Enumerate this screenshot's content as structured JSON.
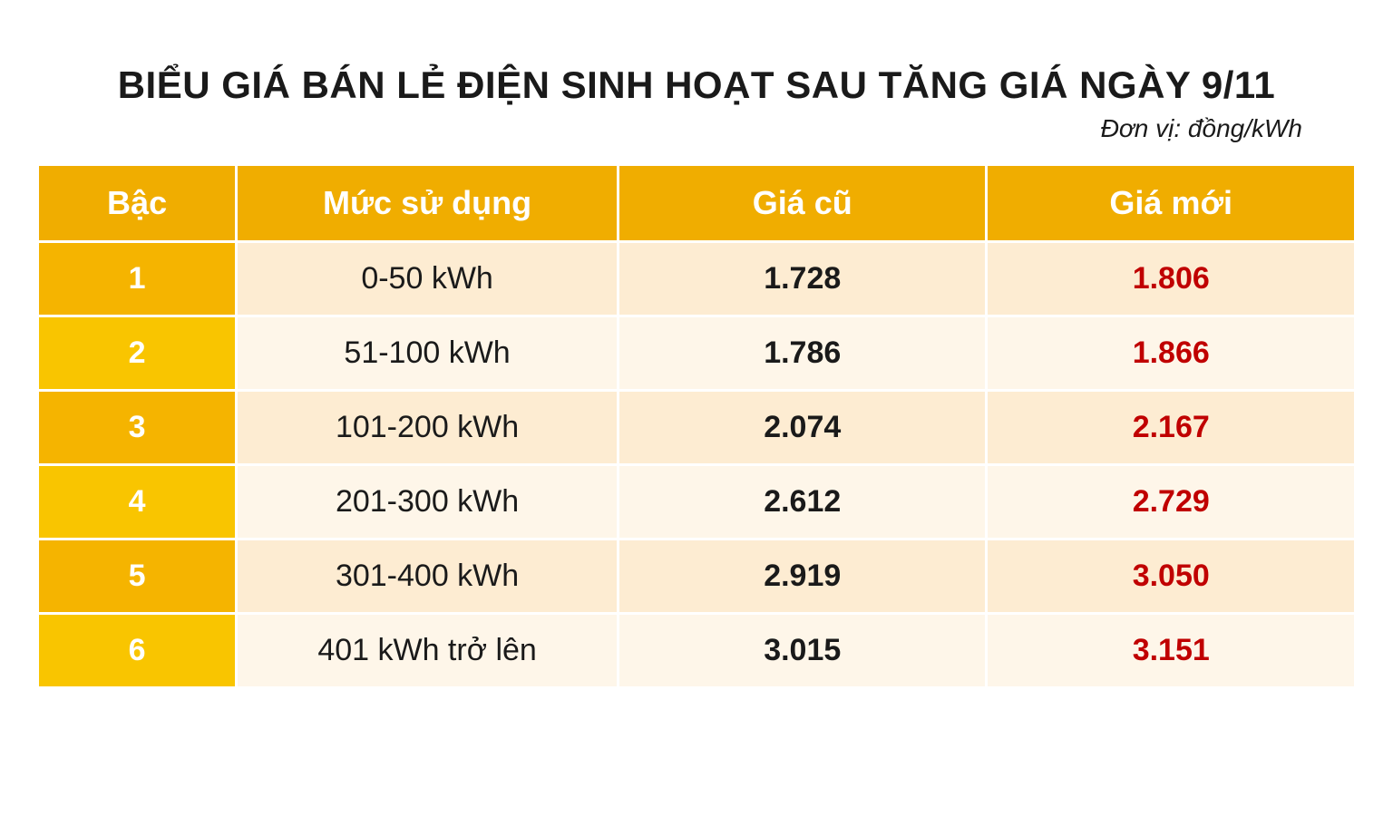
{
  "title": "BIỂU GIÁ BÁN LẺ ĐIỆN SINH HOẠT SAU TĂNG GIÁ NGÀY 9/11",
  "subtitle": "Đơn vị: đồng/kWh",
  "table": {
    "type": "table",
    "columns": [
      "Bậc",
      "Mức sử dụng",
      "Giá cũ",
      "Giá mới"
    ],
    "col_widths_pct": [
      15,
      29,
      28,
      28
    ],
    "header_bg": "#f0ad00",
    "header_color": "#ffffff",
    "header_fontsize": 36,
    "cell_fontsize": 34,
    "tier_bg_odd": "#f5b400",
    "tier_bg_even": "#f9c500",
    "row_bg_odd": "#fdecd2",
    "row_bg_even": "#fef6e9",
    "tier_color": "#ffffff",
    "usage_color": "#1a1a1a",
    "old_color": "#1a1a1a",
    "new_color": "#c00000",
    "rows": [
      {
        "tier": "1",
        "usage": "0-50 kWh",
        "old": "1.728",
        "new": "1.806"
      },
      {
        "tier": "2",
        "usage": "51-100 kWh",
        "old": "1.786",
        "new": "1.866"
      },
      {
        "tier": "3",
        "usage": "101-200 kWh",
        "old": "2.074",
        "new": "2.167"
      },
      {
        "tier": "4",
        "usage": "201-300 kWh",
        "old": "2.612",
        "new": "2.729"
      },
      {
        "tier": "5",
        "usage": "301-400 kWh",
        "old": "2.919",
        "new": "3.050"
      },
      {
        "tier": "6",
        "usage": "401 kWh trở lên",
        "old": "3.015",
        "new": "3.151"
      }
    ]
  }
}
